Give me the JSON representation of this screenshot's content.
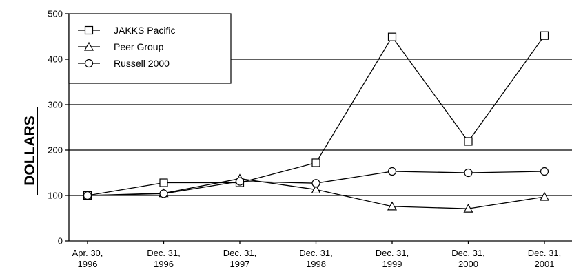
{
  "chart_data": {
    "type": "line",
    "title": "",
    "xlabel": "",
    "ylabel": "DOLLARS",
    "ylim": [
      0,
      500
    ],
    "yticks": [
      0,
      100,
      200,
      300,
      400,
      500
    ],
    "grid": "horizontal at 100, 200, 300, 400",
    "legend_position": "top-left",
    "categories": [
      [
        "Apr. 30,",
        "1996"
      ],
      [
        "Dec. 31,",
        "1996"
      ],
      [
        "Dec. 31,",
        "1997"
      ],
      [
        "Dec. 31,",
        "1998"
      ],
      [
        "Dec. 31,",
        "1999"
      ],
      [
        "Dec. 31,",
        "2000"
      ],
      [
        "Dec. 31,",
        "2001"
      ]
    ],
    "series": [
      {
        "name": "JAKKS Pacific",
        "marker": "square",
        "values": [
          100,
          128,
          128,
          172,
          449,
          219,
          452
        ]
      },
      {
        "name": "Peer Group",
        "marker": "triangle",
        "values": [
          100,
          105,
          137,
          113,
          76,
          71,
          97
        ]
      },
      {
        "name": "Russell 2000",
        "marker": "circle",
        "values": [
          100,
          104,
          131,
          127,
          153,
          150,
          153
        ]
      }
    ]
  }
}
